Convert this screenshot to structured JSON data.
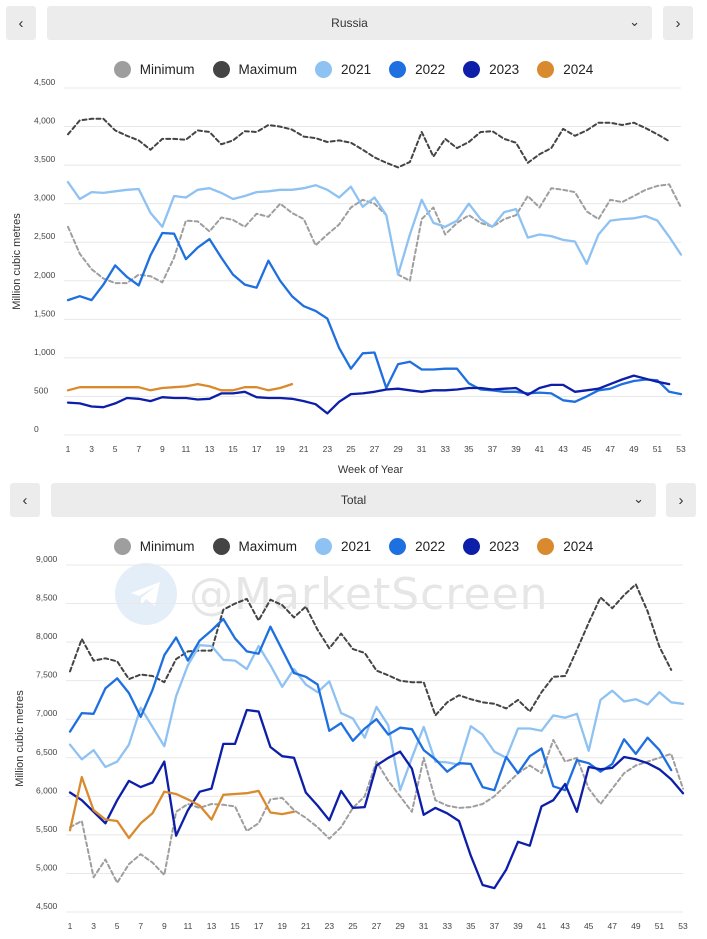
{
  "panels": [
    {
      "selector_label": "Russia",
      "prev_label": "‹",
      "next_label": "›",
      "legend": [
        {
          "label": "Minimum",
          "color": "#9e9e9e"
        },
        {
          "label": "Maximum",
          "color": "#444444"
        },
        {
          "label": "2021",
          "color": "#8ec2f2"
        },
        {
          "label": "2022",
          "color": "#1e6fe0"
        },
        {
          "label": "2023",
          "color": "#0d1ea8"
        },
        {
          "label": "2024",
          "color": "#d98a2e"
        }
      ],
      "y_tick_labels": [
        "0",
        "500",
        "1,000",
        "1,500",
        "2,000",
        "2,500",
        "3,000",
        "3,500",
        "4,000",
        "4,500"
      ],
      "x_tick_labels": [
        "1",
        "3",
        "5",
        "7",
        "9",
        "11",
        "13",
        "15",
        "17",
        "19",
        "21",
        "23",
        "25",
        "27",
        "29",
        "31",
        "33",
        "35",
        "37",
        "39",
        "41",
        "43",
        "45",
        "47",
        "49",
        "51",
        "53"
      ]
    },
    {
      "selector_label": "Total",
      "prev_label": "‹",
      "next_label": "›",
      "legend": [
        {
          "label": "Minimum",
          "color": "#9e9e9e"
        },
        {
          "label": "Maximum",
          "color": "#444444"
        },
        {
          "label": "2021",
          "color": "#8ec2f2"
        },
        {
          "label": "2022",
          "color": "#1e6fe0"
        },
        {
          "label": "2023",
          "color": "#0d1ea8"
        },
        {
          "label": "2024",
          "color": "#d98a2e"
        }
      ],
      "y_tick_labels": [
        "4,500",
        "5,000",
        "5,500",
        "6,000",
        "6,500",
        "7,000",
        "7,500",
        "8,000",
        "8,500",
        "9,000"
      ],
      "x_tick_labels": [
        "1",
        "3",
        "5",
        "7",
        "9",
        "11",
        "13",
        "15",
        "17",
        "19",
        "21",
        "23",
        "25",
        "27",
        "29",
        "31",
        "33",
        "35",
        "37",
        "39",
        "41",
        "43",
        "45",
        "47",
        "49",
        "51",
        "53"
      ]
    }
  ],
  "watermark": "@MarketScreen",
  "chart_data": [
    {
      "type": "line",
      "title": "Russia",
      "xlabel": "Week of Year",
      "ylabel": "Million cubic metres",
      "xlim": [
        1,
        53
      ],
      "ylim": [
        0,
        4500
      ],
      "grid": true,
      "legend_position": "top-center",
      "series": [
        {
          "name": "Minimum",
          "color": "#9e9e9e",
          "dash": true,
          "x_start": 1,
          "values": [
            2700,
            2350,
            2150,
            2030,
            1970,
            1970,
            2080,
            2060,
            1980,
            2300,
            2780,
            2770,
            2640,
            2820,
            2790,
            2700,
            2870,
            2830,
            3000,
            2880,
            2800,
            2460,
            2600,
            2730,
            2950,
            3050,
            3000,
            2850,
            2080,
            2000,
            2800,
            2950,
            2600,
            2750,
            2850,
            2750,
            2700,
            2800,
            2850,
            3100,
            2950,
            3200,
            3180,
            3150,
            2900,
            2800,
            3050,
            3020,
            3100,
            3180,
            3230,
            3250,
            2950
          ]
        },
        {
          "name": "Maximum",
          "color": "#444444",
          "dash": true,
          "x_start": 1,
          "values": [
            3900,
            4080,
            4100,
            4100,
            3950,
            3880,
            3820,
            3700,
            3840,
            3840,
            3830,
            3950,
            3930,
            3770,
            3820,
            3940,
            3930,
            4020,
            4000,
            3960,
            3870,
            3850,
            3800,
            3820,
            3790,
            3700,
            3600,
            3530,
            3470,
            3540,
            3930,
            3610,
            3840,
            3720,
            3800,
            3930,
            3940,
            3840,
            3790,
            3530,
            3640,
            3720,
            3970,
            3880,
            3950,
            4050,
            4050,
            4020,
            4050,
            3980,
            3900,
            3810
          ]
        },
        {
          "name": "2021",
          "color": "#8ec2f2",
          "dash": false,
          "x_start": 1,
          "values": [
            3280,
            3060,
            3150,
            3140,
            3160,
            3180,
            3190,
            2880,
            2700,
            3100,
            3080,
            3180,
            3200,
            3140,
            3060,
            3100,
            3150,
            3160,
            3180,
            3180,
            3200,
            3240,
            3180,
            3080,
            3220,
            2960,
            3080,
            2850,
            2080,
            2600,
            3050,
            2750,
            2700,
            2780,
            3000,
            2800,
            2700,
            2890,
            2930,
            2560,
            2600,
            2580,
            2530,
            2510,
            2220,
            2600,
            2780,
            2800,
            2810,
            2840,
            2780,
            2570,
            2340
          ]
        },
        {
          "name": "2022",
          "color": "#1e6fe0",
          "dash": false,
          "x_start": 1,
          "values": [
            1750,
            1800,
            1750,
            1950,
            2200,
            2050,
            1940,
            2330,
            2620,
            2610,
            2280,
            2430,
            2540,
            2300,
            2080,
            1950,
            1910,
            2260,
            2000,
            1800,
            1670,
            1610,
            1510,
            1130,
            860,
            1060,
            1070,
            610,
            920,
            950,
            850,
            850,
            860,
            860,
            670,
            590,
            580,
            560,
            560,
            540,
            550,
            540,
            450,
            430,
            500,
            580,
            600,
            660,
            700,
            720,
            710,
            560,
            530
          ]
        },
        {
          "name": "2023",
          "color": "#0d1ea8",
          "dash": false,
          "x_start": 1,
          "values": [
            420,
            410,
            370,
            360,
            410,
            480,
            470,
            440,
            490,
            480,
            480,
            460,
            470,
            540,
            540,
            560,
            490,
            480,
            480,
            470,
            440,
            400,
            280,
            430,
            530,
            540,
            560,
            590,
            600,
            580,
            560,
            580,
            580,
            590,
            610,
            610,
            590,
            600,
            610,
            520,
            610,
            650,
            650,
            560,
            580,
            600,
            660,
            720,
            770,
            730,
            690,
            660
          ]
        },
        {
          "name": "2024",
          "color": "#d98a2e",
          "dash": false,
          "x_start": 1,
          "values": [
            580,
            620,
            620,
            620,
            620,
            620,
            620,
            580,
            610,
            620,
            630,
            660,
            630,
            580,
            580,
            620,
            620,
            580,
            610,
            660
          ]
        }
      ]
    },
    {
      "type": "line",
      "title": "Total",
      "xlabel": "",
      "ylabel": "Million cubic metres",
      "xlim": [
        1,
        53
      ],
      "ylim": [
        4500,
        9000
      ],
      "grid": true,
      "legend_position": "top-center",
      "series": [
        {
          "name": "Minimum",
          "color": "#9e9e9e",
          "dash": true,
          "x_start": 1,
          "values": [
            5600,
            5680,
            4950,
            5180,
            4880,
            5120,
            5250,
            5140,
            4980,
            5800,
            5900,
            5850,
            5900,
            5890,
            5870,
            5550,
            5650,
            5960,
            5980,
            5820,
            5720,
            5600,
            5450,
            5600,
            5850,
            6000,
            6450,
            6200,
            6000,
            5800,
            6500,
            5950,
            5880,
            5850,
            5860,
            5900,
            6000,
            6150,
            6300,
            6400,
            6300,
            6730,
            6450,
            6500,
            6100,
            5900,
            6100,
            6300,
            6400,
            6450,
            6500,
            6550,
            6100
          ]
        },
        {
          "name": "Maximum",
          "color": "#444444",
          "dash": true,
          "x_start": 1,
          "values": [
            7620,
            8040,
            7760,
            7790,
            7750,
            7520,
            7580,
            7560,
            7480,
            7780,
            7880,
            7890,
            7890,
            8420,
            8500,
            8560,
            8280,
            8550,
            8480,
            8320,
            8460,
            8160,
            7920,
            8110,
            7910,
            7860,
            7630,
            7570,
            7500,
            7480,
            7480,
            7050,
            7220,
            7310,
            7260,
            7220,
            7200,
            7140,
            7250,
            7100,
            7350,
            7550,
            7560,
            7900,
            8250,
            8580,
            8440,
            8610,
            8750,
            8400,
            7940,
            7640
          ]
        },
        {
          "name": "2021",
          "color": "#8ec2f2",
          "dash": false,
          "x_start": 1,
          "values": [
            6670,
            6480,
            6600,
            6380,
            6450,
            6670,
            7150,
            6900,
            6650,
            7300,
            7700,
            7960,
            7950,
            7770,
            7760,
            7650,
            7950,
            7700,
            7420,
            7650,
            7450,
            7350,
            7490,
            7080,
            7010,
            6760,
            7160,
            6920,
            6080,
            6500,
            6900,
            6450,
            6440,
            6410,
            6910,
            6800,
            6580,
            6500,
            6880,
            6880,
            6850,
            7050,
            7020,
            7070,
            6590,
            7250,
            7370,
            7230,
            7260,
            7190,
            7350,
            7220,
            7200
          ]
        },
        {
          "name": "2022",
          "color": "#1e6fe0",
          "dash": false,
          "x_start": 1,
          "values": [
            6840,
            7080,
            7070,
            7400,
            7530,
            7340,
            7030,
            7380,
            7830,
            8060,
            7760,
            8020,
            8150,
            8300,
            8050,
            7880,
            7850,
            8200,
            7900,
            7600,
            7550,
            7450,
            6850,
            6950,
            6720,
            6880,
            7000,
            6800,
            6890,
            6870,
            6600,
            6480,
            6320,
            6430,
            6420,
            6120,
            6080,
            6510,
            6300,
            6520,
            6620,
            6130,
            6080,
            6470,
            6430,
            6320,
            6420,
            6740,
            6550,
            6760,
            6600,
            6340
          ]
        },
        {
          "name": "2023",
          "color": "#0d1ea8",
          "dash": false,
          "x_start": 1,
          "values": [
            6050,
            5950,
            5800,
            5650,
            5950,
            6200,
            6120,
            6180,
            6450,
            5490,
            5820,
            6060,
            6100,
            6680,
            6680,
            7120,
            7100,
            6640,
            6520,
            6500,
            6050,
            5880,
            5690,
            6070,
            5850,
            5860,
            6400,
            6500,
            6580,
            6360,
            5760,
            5850,
            5780,
            5680,
            5230,
            4850,
            4810,
            5050,
            5410,
            5360,
            5870,
            5950,
            6160,
            5800,
            6380,
            6350,
            6370,
            6510,
            6480,
            6430,
            6350,
            6220,
            6040
          ]
        },
        {
          "name": "2024",
          "color": "#d98a2e",
          "dash": false,
          "x_start": 1,
          "values": [
            5560,
            6250,
            5820,
            5700,
            5680,
            5460,
            5650,
            5780,
            6060,
            6030,
            5960,
            5880,
            5700,
            6020,
            6030,
            6040,
            6070,
            5790,
            5770,
            5800
          ]
        }
      ]
    }
  ]
}
